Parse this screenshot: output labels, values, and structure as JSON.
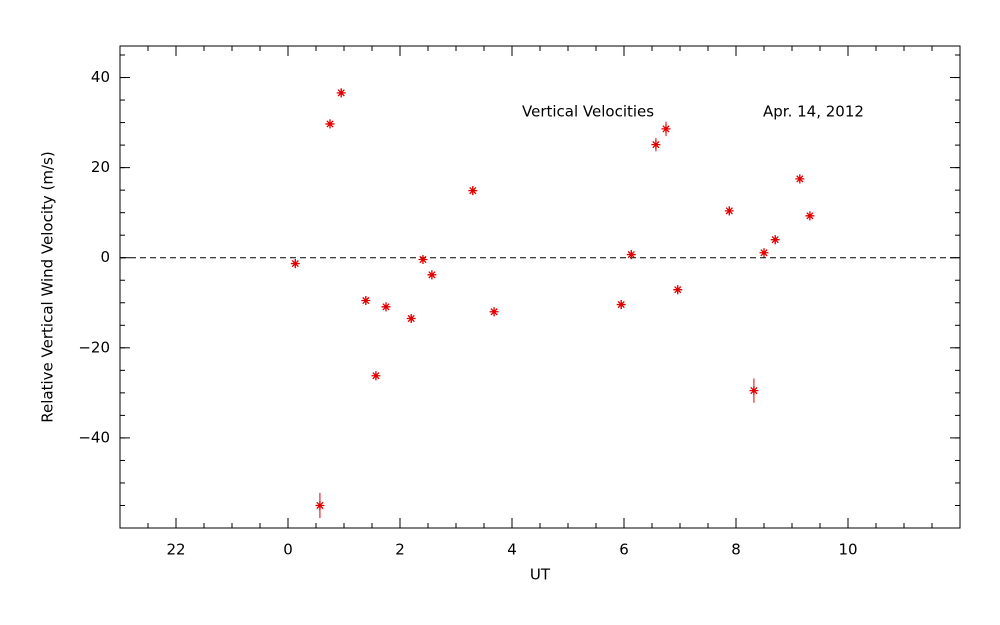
{
  "chart_data": {
    "type": "scatter",
    "xlabel": "UT",
    "ylabel": "Relative Vertical Wind Velocity (m/s)",
    "annotations": [
      "Vertical Velocities",
      "Apr. 14, 2012"
    ],
    "x": [
      0.13,
      0.57,
      0.75,
      0.95,
      1.39,
      1.57,
      1.75,
      2.2,
      2.41,
      2.57,
      3.3,
      3.68,
      5.95,
      6.13,
      6.57,
      6.75,
      6.96,
      7.88,
      8.32,
      8.5,
      8.7,
      9.14,
      9.32
    ],
    "y": [
      -1.3,
      -55,
      29.7,
      36.6,
      -9.5,
      -26.2,
      -10.9,
      -13.5,
      -0.4,
      -3.8,
      14.9,
      -12,
      -10.4,
      0.7,
      25.1,
      28.6,
      -7.1,
      10.4,
      -29.5,
      1.1,
      4,
      17.5,
      9.3
    ],
    "errors": [
      1,
      2.8,
      1,
      1,
      1,
      1,
      1,
      1,
      1,
      1,
      1,
      1,
      1,
      1,
      1.5,
      1.6,
      1,
      1,
      2.7,
      1,
      1,
      1,
      1
    ],
    "color": "#e00000",
    "xlim": [
      -3,
      12
    ],
    "xticks": [
      {
        "value": -2,
        "label": "22"
      },
      0,
      2,
      4,
      6,
      8,
      10
    ],
    "ylim": [
      -60,
      47
    ],
    "yticks": [
      {
        "value": -40,
        "label": "−40"
      },
      {
        "value": -20,
        "label": "−20"
      },
      0,
      20,
      40
    ],
    "xminor_step": 0.5,
    "yminor_step": 5,
    "reference_line": 0
  }
}
